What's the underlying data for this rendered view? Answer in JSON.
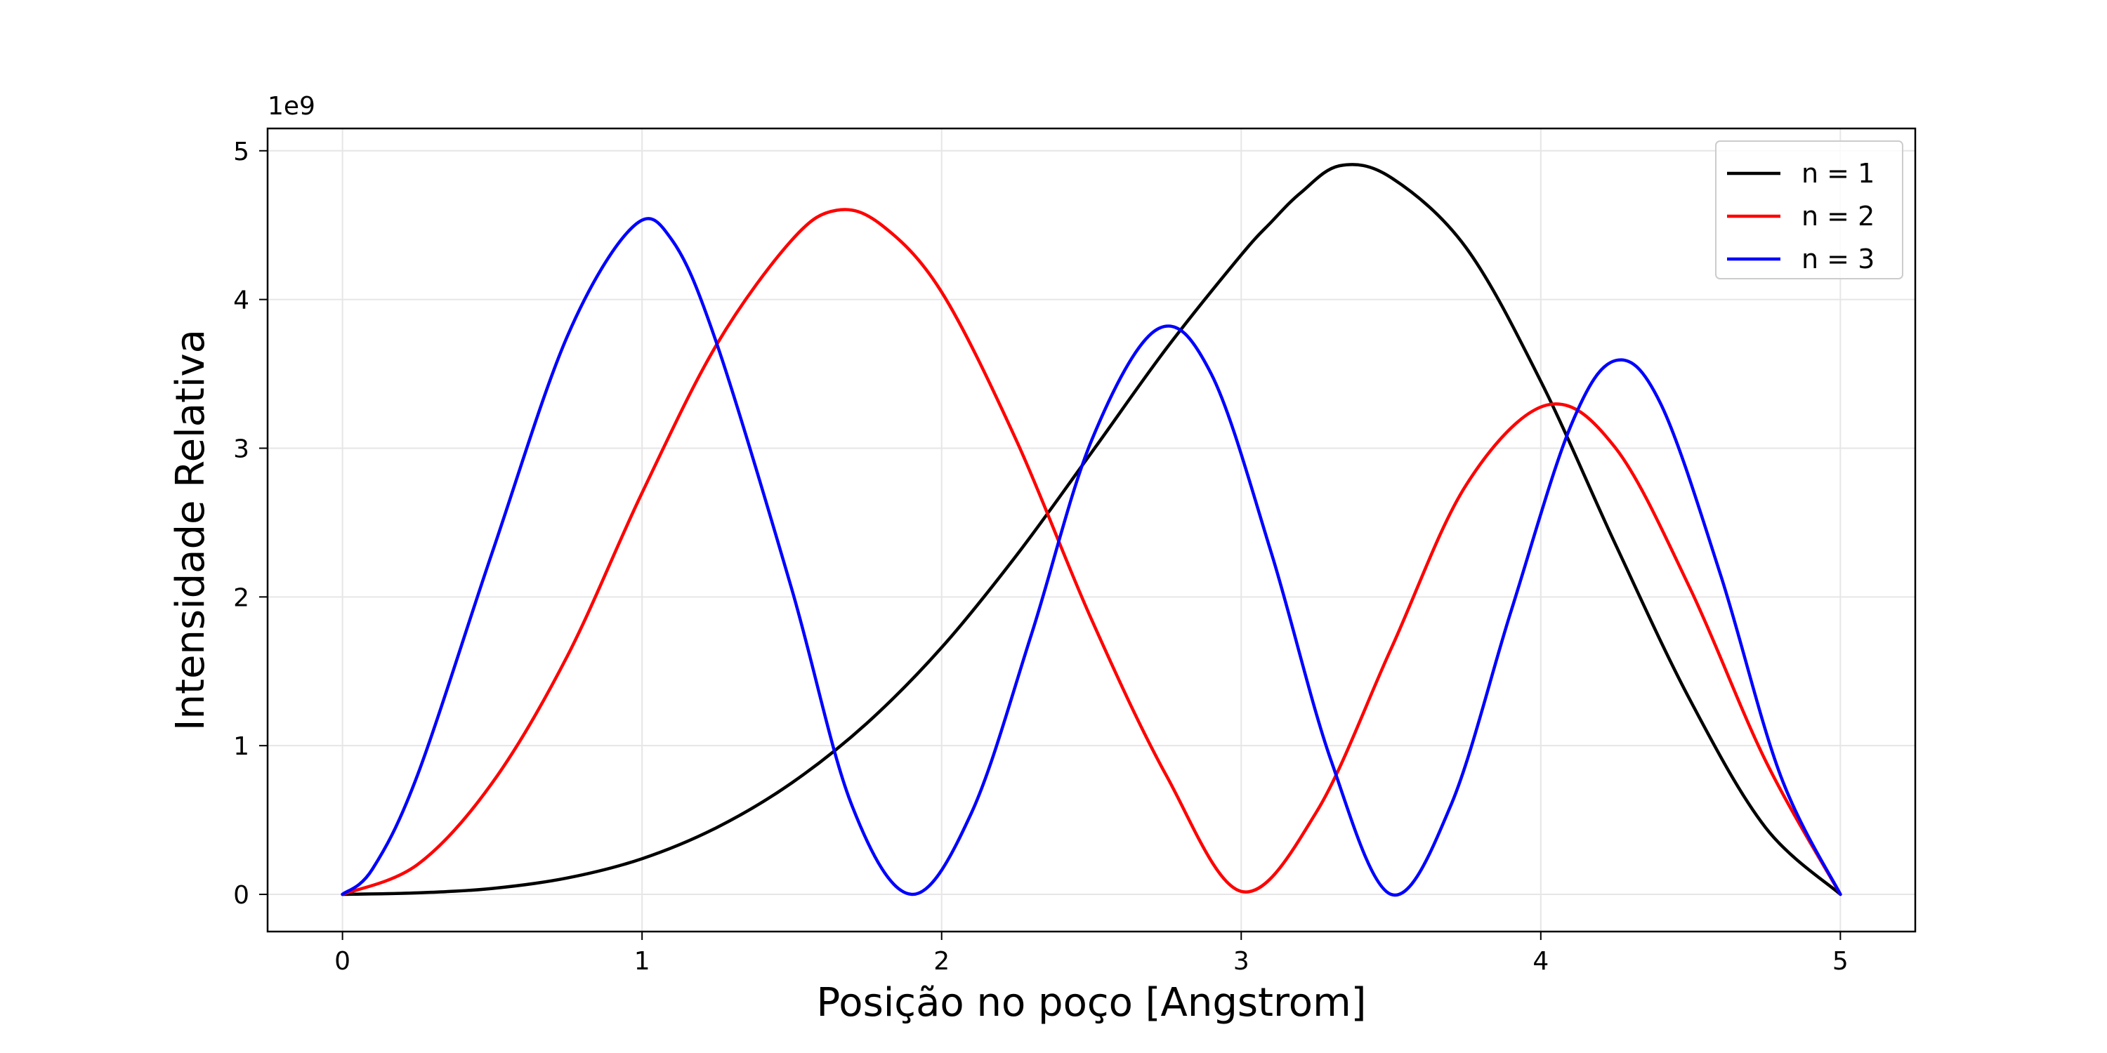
{
  "chart_data": {
    "type": "line",
    "title": "",
    "xlabel": "Posição no poço [Angstrom]",
    "ylabel": "Intensidade Relativa",
    "y_offset_label": "1e9",
    "y_scale": 1000000000,
    "xlim": [
      -0.25,
      5.25
    ],
    "ylim": [
      -0.25,
      5.15
    ],
    "x_ticks": [
      0,
      1,
      2,
      3,
      4,
      5
    ],
    "y_ticks": [
      0,
      1,
      2,
      3,
      4,
      5
    ],
    "grid": true,
    "legend_position": "top-right",
    "series": [
      {
        "name": "n = 1",
        "color": "#000000",
        "points": [
          [
            0,
            0
          ],
          [
            0.25,
            0.01
          ],
          [
            0.5,
            0.04
          ],
          [
            0.75,
            0.11
          ],
          [
            1.0,
            0.24
          ],
          [
            1.25,
            0.45
          ],
          [
            1.5,
            0.75
          ],
          [
            1.75,
            1.15
          ],
          [
            2.0,
            1.66
          ],
          [
            2.25,
            2.28
          ],
          [
            2.5,
            2.97
          ],
          [
            2.75,
            3.67
          ],
          [
            3.0,
            4.3
          ],
          [
            3.1,
            4.52
          ],
          [
            3.2,
            4.72
          ],
          [
            3.33,
            4.9
          ],
          [
            3.5,
            4.82
          ],
          [
            3.75,
            4.35
          ],
          [
            4.0,
            3.45
          ],
          [
            4.25,
            2.35
          ],
          [
            4.5,
            1.3
          ],
          [
            4.75,
            0.45
          ],
          [
            5.0,
            0
          ]
        ]
      },
      {
        "name": "n = 2",
        "color": "#ff0000",
        "points": [
          [
            0,
            0
          ],
          [
            0.25,
            0.2
          ],
          [
            0.5,
            0.75
          ],
          [
            0.75,
            1.6
          ],
          [
            1.0,
            2.7
          ],
          [
            1.25,
            3.7
          ],
          [
            1.5,
            4.4
          ],
          [
            1.65,
            4.6
          ],
          [
            1.8,
            4.5
          ],
          [
            2.0,
            4.05
          ],
          [
            2.25,
            3.05
          ],
          [
            2.5,
            1.85
          ],
          [
            2.75,
            0.8
          ],
          [
            3.0,
            0.02
          ],
          [
            3.25,
            0.55
          ],
          [
            3.5,
            1.65
          ],
          [
            3.75,
            2.75
          ],
          [
            4.02,
            3.29
          ],
          [
            4.25,
            3.0
          ],
          [
            4.5,
            2.05
          ],
          [
            4.75,
            0.9
          ],
          [
            5.0,
            0
          ]
        ]
      },
      {
        "name": "n = 3",
        "color": "#0000ff",
        "points": [
          [
            0,
            0
          ],
          [
            0.1,
            0.17
          ],
          [
            0.25,
            0.8
          ],
          [
            0.5,
            2.3
          ],
          [
            0.75,
            3.75
          ],
          [
            0.97,
            4.49
          ],
          [
            1.1,
            4.4
          ],
          [
            1.25,
            3.7
          ],
          [
            1.5,
            2.05
          ],
          [
            1.7,
            0.6
          ],
          [
            1.9,
            0.0
          ],
          [
            2.1,
            0.55
          ],
          [
            2.3,
            1.75
          ],
          [
            2.5,
            3.05
          ],
          [
            2.72,
            3.8
          ],
          [
            2.9,
            3.5
          ],
          [
            3.1,
            2.3
          ],
          [
            3.3,
            0.9
          ],
          [
            3.5,
            0.0
          ],
          [
            3.7,
            0.6
          ],
          [
            3.9,
            1.9
          ],
          [
            4.1,
            3.15
          ],
          [
            4.25,
            3.59
          ],
          [
            4.4,
            3.3
          ],
          [
            4.6,
            2.15
          ],
          [
            4.8,
            0.8
          ],
          [
            5.0,
            0
          ]
        ]
      }
    ]
  }
}
